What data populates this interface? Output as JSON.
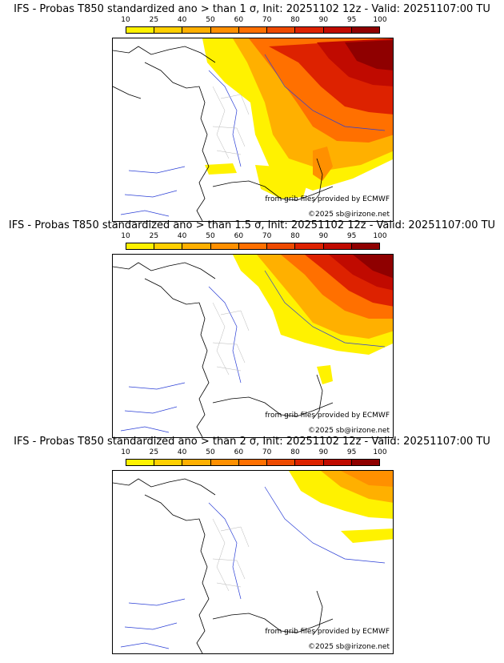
{
  "colorbar": {
    "ticks": [
      "10",
      "25",
      "40",
      "50",
      "60",
      "70",
      "80",
      "90",
      "95",
      "100"
    ],
    "colors": [
      "#fff200",
      "#ffd000",
      "#ffb000",
      "#ff9000",
      "#ff7000",
      "#ee4a00",
      "#dd2200",
      "#c00a00",
      "#8f0000"
    ]
  },
  "credits": {
    "source": "from grib files provided by ECMWF",
    "copyright": "©2025 sb@irizone.net"
  },
  "panels": [
    {
      "title": "IFS - Probas T850  standardized ano > than 1 σ, Init: 20251102 12z - Valid: 20251107:00 TU"
    },
    {
      "title": "IFS - Probas T850  standardized ano > than 1.5 σ, Init: 20251102 12z - Valid: 20251107:00 TU"
    },
    {
      "title": "IFS - Probas T850  standardized ano > than 2 σ, Init: 20251102 12z - Valid: 20251107:00 TU"
    }
  ]
}
